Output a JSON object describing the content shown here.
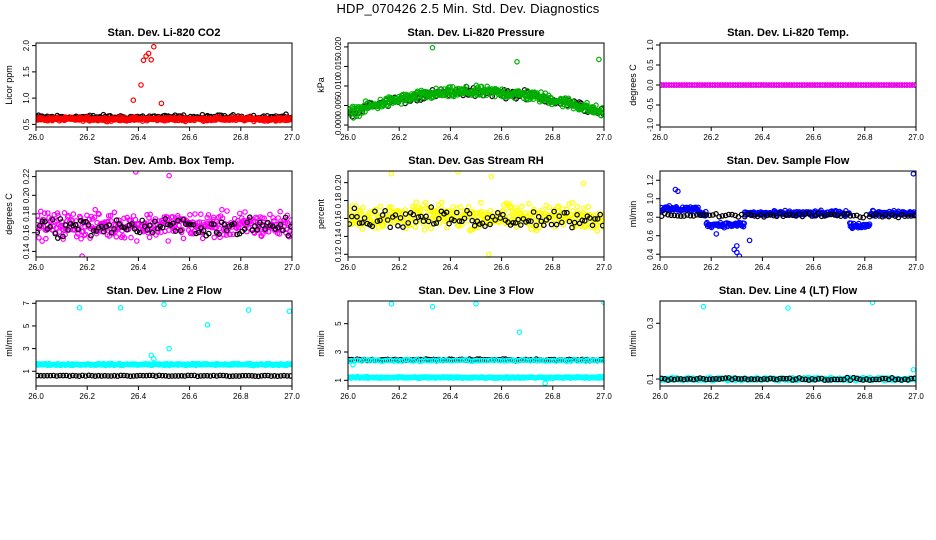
{
  "page": {
    "title": "HDP_070426  2.5 Min. Std. Dev. Diagnostics"
  },
  "chart_data": [
    {
      "type": "scatter",
      "title": "Stan. Dev. Li-820 CO2",
      "ylabel": "Licor ppm",
      "xlabel": "",
      "xlim": [
        26.0,
        27.0
      ],
      "ylim": [
        0.45,
        2.05
      ],
      "xticks": [
        "26.0",
        "26.2",
        "26.4",
        "26.6",
        "26.8",
        "27.0"
      ],
      "yticks": [
        0.5,
        1.0,
        1.5,
        2.0
      ],
      "yticklabels": [
        "0.5",
        "1.0",
        "1.5",
        "2.0"
      ],
      "series": [
        {
          "name": "black",
          "color": "#000000",
          "n": 150,
          "base": 0.64,
          "noise": 0.06,
          "spikes": []
        },
        {
          "name": "red",
          "color": "#ff0000",
          "n": 400,
          "base": 0.6,
          "noise": 0.05,
          "spikes": [
            [
              26.42,
              1.72
            ],
            [
              26.43,
              1.8
            ],
            [
              26.44,
              1.85
            ],
            [
              26.46,
              1.98
            ],
            [
              26.45,
              1.73
            ],
            [
              26.41,
              1.25
            ],
            [
              26.38,
              0.96
            ],
            [
              26.49,
              0.9
            ]
          ]
        }
      ]
    },
    {
      "type": "scatter",
      "title": "Stan. Dev. Li-820 Pressure",
      "ylabel": "kPa",
      "xlabel": "",
      "xlim": [
        26.0,
        27.0
      ],
      "ylim": [
        -0.0005,
        0.021
      ],
      "xticks": [
        "26.0",
        "26.2",
        "26.4",
        "26.6",
        "26.8",
        "27.0"
      ],
      "yticks": [
        0.0,
        0.005,
        0.01,
        0.015,
        0.02
      ],
      "yticklabels": [
        "0.000",
        "0.005",
        "0.010",
        "0.015",
        "0.020"
      ],
      "series": [
        {
          "name": "black",
          "color": "#000000",
          "n": 150,
          "base": "arch",
          "noise": 0.0018,
          "spikes": []
        },
        {
          "name": "green",
          "color": "#00b000",
          "n": 400,
          "base": "arch",
          "noise": 0.002,
          "spikes": [
            [
              26.33,
              0.0198
            ],
            [
              26.66,
              0.0162
            ],
            [
              26.98,
              0.0168
            ]
          ]
        }
      ]
    },
    {
      "type": "scatter",
      "title": "Stan. Dev. Li-820 Temp.",
      "ylabel": "degrees C",
      "xlabel": "",
      "xlim": [
        26.0,
        27.0
      ],
      "ylim": [
        -1.05,
        1.05
      ],
      "xticks": [
        "26.0",
        "26.2",
        "26.4",
        "26.6",
        "26.8",
        "27.0"
      ],
      "yticks": [
        -1.0,
        -0.5,
        0.0,
        0.5,
        1.0
      ],
      "yticklabels": [
        "-1.0",
        "-0.5",
        "0.0",
        "0.5",
        "1.0"
      ],
      "series": [
        {
          "name": "black",
          "color": "#000000",
          "n": 100,
          "base": 0.0,
          "noise": 0.0,
          "spikes": []
        },
        {
          "name": "magenta",
          "color": "#ff00ff",
          "n": 100,
          "base": 0.0,
          "noise": 0.0,
          "spikes": []
        }
      ]
    },
    {
      "type": "scatter",
      "title": "Stan. Dev. Amb. Box Temp.",
      "ylabel": "degrees C",
      "xlabel": "",
      "xlim": [
        26.0,
        27.0
      ],
      "ylim": [
        0.134,
        0.226
      ],
      "xticks": [
        "26.0",
        "26.2",
        "26.4",
        "26.6",
        "26.8",
        "27.0"
      ],
      "yticks": [
        0.14,
        0.16,
        0.18,
        0.2,
        0.22
      ],
      "yticklabels": [
        "0.14",
        "0.16",
        "0.18",
        "0.20",
        "0.22"
      ],
      "series": [
        {
          "name": "magenta",
          "color": "#ff00ff",
          "n": 400,
          "base": 0.168,
          "noise": 0.02,
          "spikes": [
            [
              26.39,
              0.225
            ],
            [
              26.52,
              0.221
            ],
            [
              26.18,
              0.135
            ]
          ]
        },
        {
          "name": "black",
          "color": "#000000",
          "n": 100,
          "base": 0.166,
          "noise": 0.014,
          "spikes": []
        }
      ]
    },
    {
      "type": "scatter",
      "title": "Stan. Dev. Gas Stream RH",
      "ylabel": "percent",
      "xlabel": "",
      "xlim": [
        26.0,
        27.0
      ],
      "ylim": [
        0.117,
        0.213
      ],
      "xticks": [
        "26.0",
        "26.2",
        "26.4",
        "26.6",
        "26.8",
        "27.0"
      ],
      "yticks": [
        0.12,
        0.14,
        0.16,
        0.18,
        0.2
      ],
      "yticklabels": [
        "0.12",
        "0.14",
        "0.16",
        "0.18",
        "0.20"
      ],
      "series": [
        {
          "name": "yellow",
          "color": "#ffff00",
          "n": 400,
          "base": 0.162,
          "noise": 0.02,
          "spikes": [
            [
              26.17,
              0.21
            ],
            [
              26.43,
              0.212
            ],
            [
              26.56,
              0.207
            ],
            [
              26.92,
              0.199
            ],
            [
              26.55,
              0.12
            ]
          ]
        },
        {
          "name": "black",
          "color": "#000000",
          "n": 100,
          "base": 0.16,
          "noise": 0.015,
          "spikes": []
        }
      ]
    },
    {
      "type": "scatter",
      "title": "Stan. Dev. Sample Flow",
      "ylabel": "ml/min",
      "xlabel": "",
      "xlim": [
        26.0,
        27.0
      ],
      "ylim": [
        0.37,
        1.3
      ],
      "xticks": [
        "26.0",
        "26.2",
        "26.4",
        "26.6",
        "26.8",
        "27.0"
      ],
      "yticks": [
        0.4,
        0.6,
        0.8,
        1.0,
        1.2
      ],
      "yticklabels": [
        "0.4",
        "0.6",
        "0.8",
        "1.0",
        "1.2"
      ],
      "series": [
        {
          "name": "blue",
          "color": "#0000ff",
          "n": 400,
          "base": "flow",
          "noise": 0.04,
          "spikes": [
            [
              26.06,
              1.1
            ],
            [
              26.07,
              1.08
            ],
            [
              26.29,
              0.45
            ],
            [
              26.3,
              0.42
            ],
            [
              26.31,
              0.38
            ],
            [
              26.3,
              0.49
            ],
            [
              26.35,
              0.55
            ],
            [
              26.99,
              1.27
            ],
            [
              26.22,
              0.62
            ]
          ]
        },
        {
          "name": "black",
          "color": "#000000",
          "n": 80,
          "base": 0.82,
          "noise": 0.03,
          "spikes": []
        }
      ]
    },
    {
      "type": "scatter",
      "title": "Stan. Dev. Line 2 Flow",
      "ylabel": "ml/min",
      "xlabel": "",
      "xlim": [
        26.0,
        27.0
      ],
      "ylim": [
        -0.3,
        7.2
      ],
      "xticks": [
        "26.0",
        "26.2",
        "26.4",
        "26.6",
        "26.8",
        "27.0"
      ],
      "yticks": [
        1,
        3,
        5,
        7
      ],
      "yticklabels": [
        "1",
        "3",
        "5",
        "7"
      ],
      "series": [
        {
          "name": "cyan",
          "color": "#00ffff",
          "n": 300,
          "base": 1.6,
          "noise": 0.12,
          "spikes": [
            [
              26.17,
              6.6
            ],
            [
              26.33,
              6.6
            ],
            [
              26.5,
              6.9
            ],
            [
              26.67,
              5.1
            ],
            [
              26.83,
              6.4
            ],
            [
              26.99,
              6.3
            ],
            [
              26.45,
              2.4
            ],
            [
              26.46,
              2.1
            ],
            [
              26.52,
              3.0
            ]
          ]
        },
        {
          "name": "black",
          "color": "#000000",
          "n": 80,
          "base": 0.6,
          "noise": 0.07,
          "spikes": []
        }
      ]
    },
    {
      "type": "scatter",
      "title": "Stan. Dev. Line 3 Flow",
      "ylabel": "ml/min",
      "xlabel": "",
      "xlim": [
        26.0,
        27.0
      ],
      "ylim": [
        0.6,
        6.6
      ],
      "xticks": [
        "26.0",
        "26.2",
        "26.4",
        "26.6",
        "26.8",
        "27.0"
      ],
      "yticks": [
        1,
        3,
        5
      ],
      "yticklabels": [
        "1",
        "3",
        "5"
      ],
      "series": [
        {
          "name": "cyan",
          "color": "#00ffff",
          "n": 300,
          "base": 1.2,
          "noise": 0.08,
          "spikes": [
            [
              26.17,
              6.4
            ],
            [
              26.33,
              6.2
            ],
            [
              26.5,
              6.4
            ],
            [
              26.67,
              4.4
            ],
            [
              27.0,
              6.5
            ],
            [
              26.02,
              2.1
            ],
            [
              26.77,
              0.8
            ]
          ]
        },
        {
          "name": "black",
          "color": "#000000",
          "n": 100,
          "base": 2.45,
          "noise": 0.09,
          "spikes": []
        },
        {
          "name": "cyan",
          "color": "#00ffff",
          "n": 120,
          "base": 2.4,
          "noise": 0.09,
          "spikes": []
        }
      ]
    },
    {
      "type": "scatter",
      "title": "Stan. Dev. Line 4 (LT) Flow",
      "ylabel": "ml/min",
      "xlabel": "",
      "xlim": [
        26.0,
        27.0
      ],
      "ylim": [
        0.075,
        0.38
      ],
      "xticks": [
        "26.0",
        "26.2",
        "26.4",
        "26.6",
        "26.8",
        "27.0"
      ],
      "yticks": [
        0.1,
        0.3
      ],
      "yticklabels": [
        "0.1",
        "0.3"
      ],
      "series": [
        {
          "name": "cyan",
          "color": "#00ffff",
          "n": 300,
          "base": 0.1,
          "noise": 0.008,
          "spikes": [
            [
              26.17,
              0.36
            ],
            [
              26.5,
              0.355
            ],
            [
              26.83,
              0.375
            ],
            [
              26.99,
              0.133
            ]
          ]
        },
        {
          "name": "black",
          "color": "#000000",
          "n": 80,
          "base": 0.1,
          "noise": 0.007,
          "spikes": []
        }
      ]
    }
  ]
}
